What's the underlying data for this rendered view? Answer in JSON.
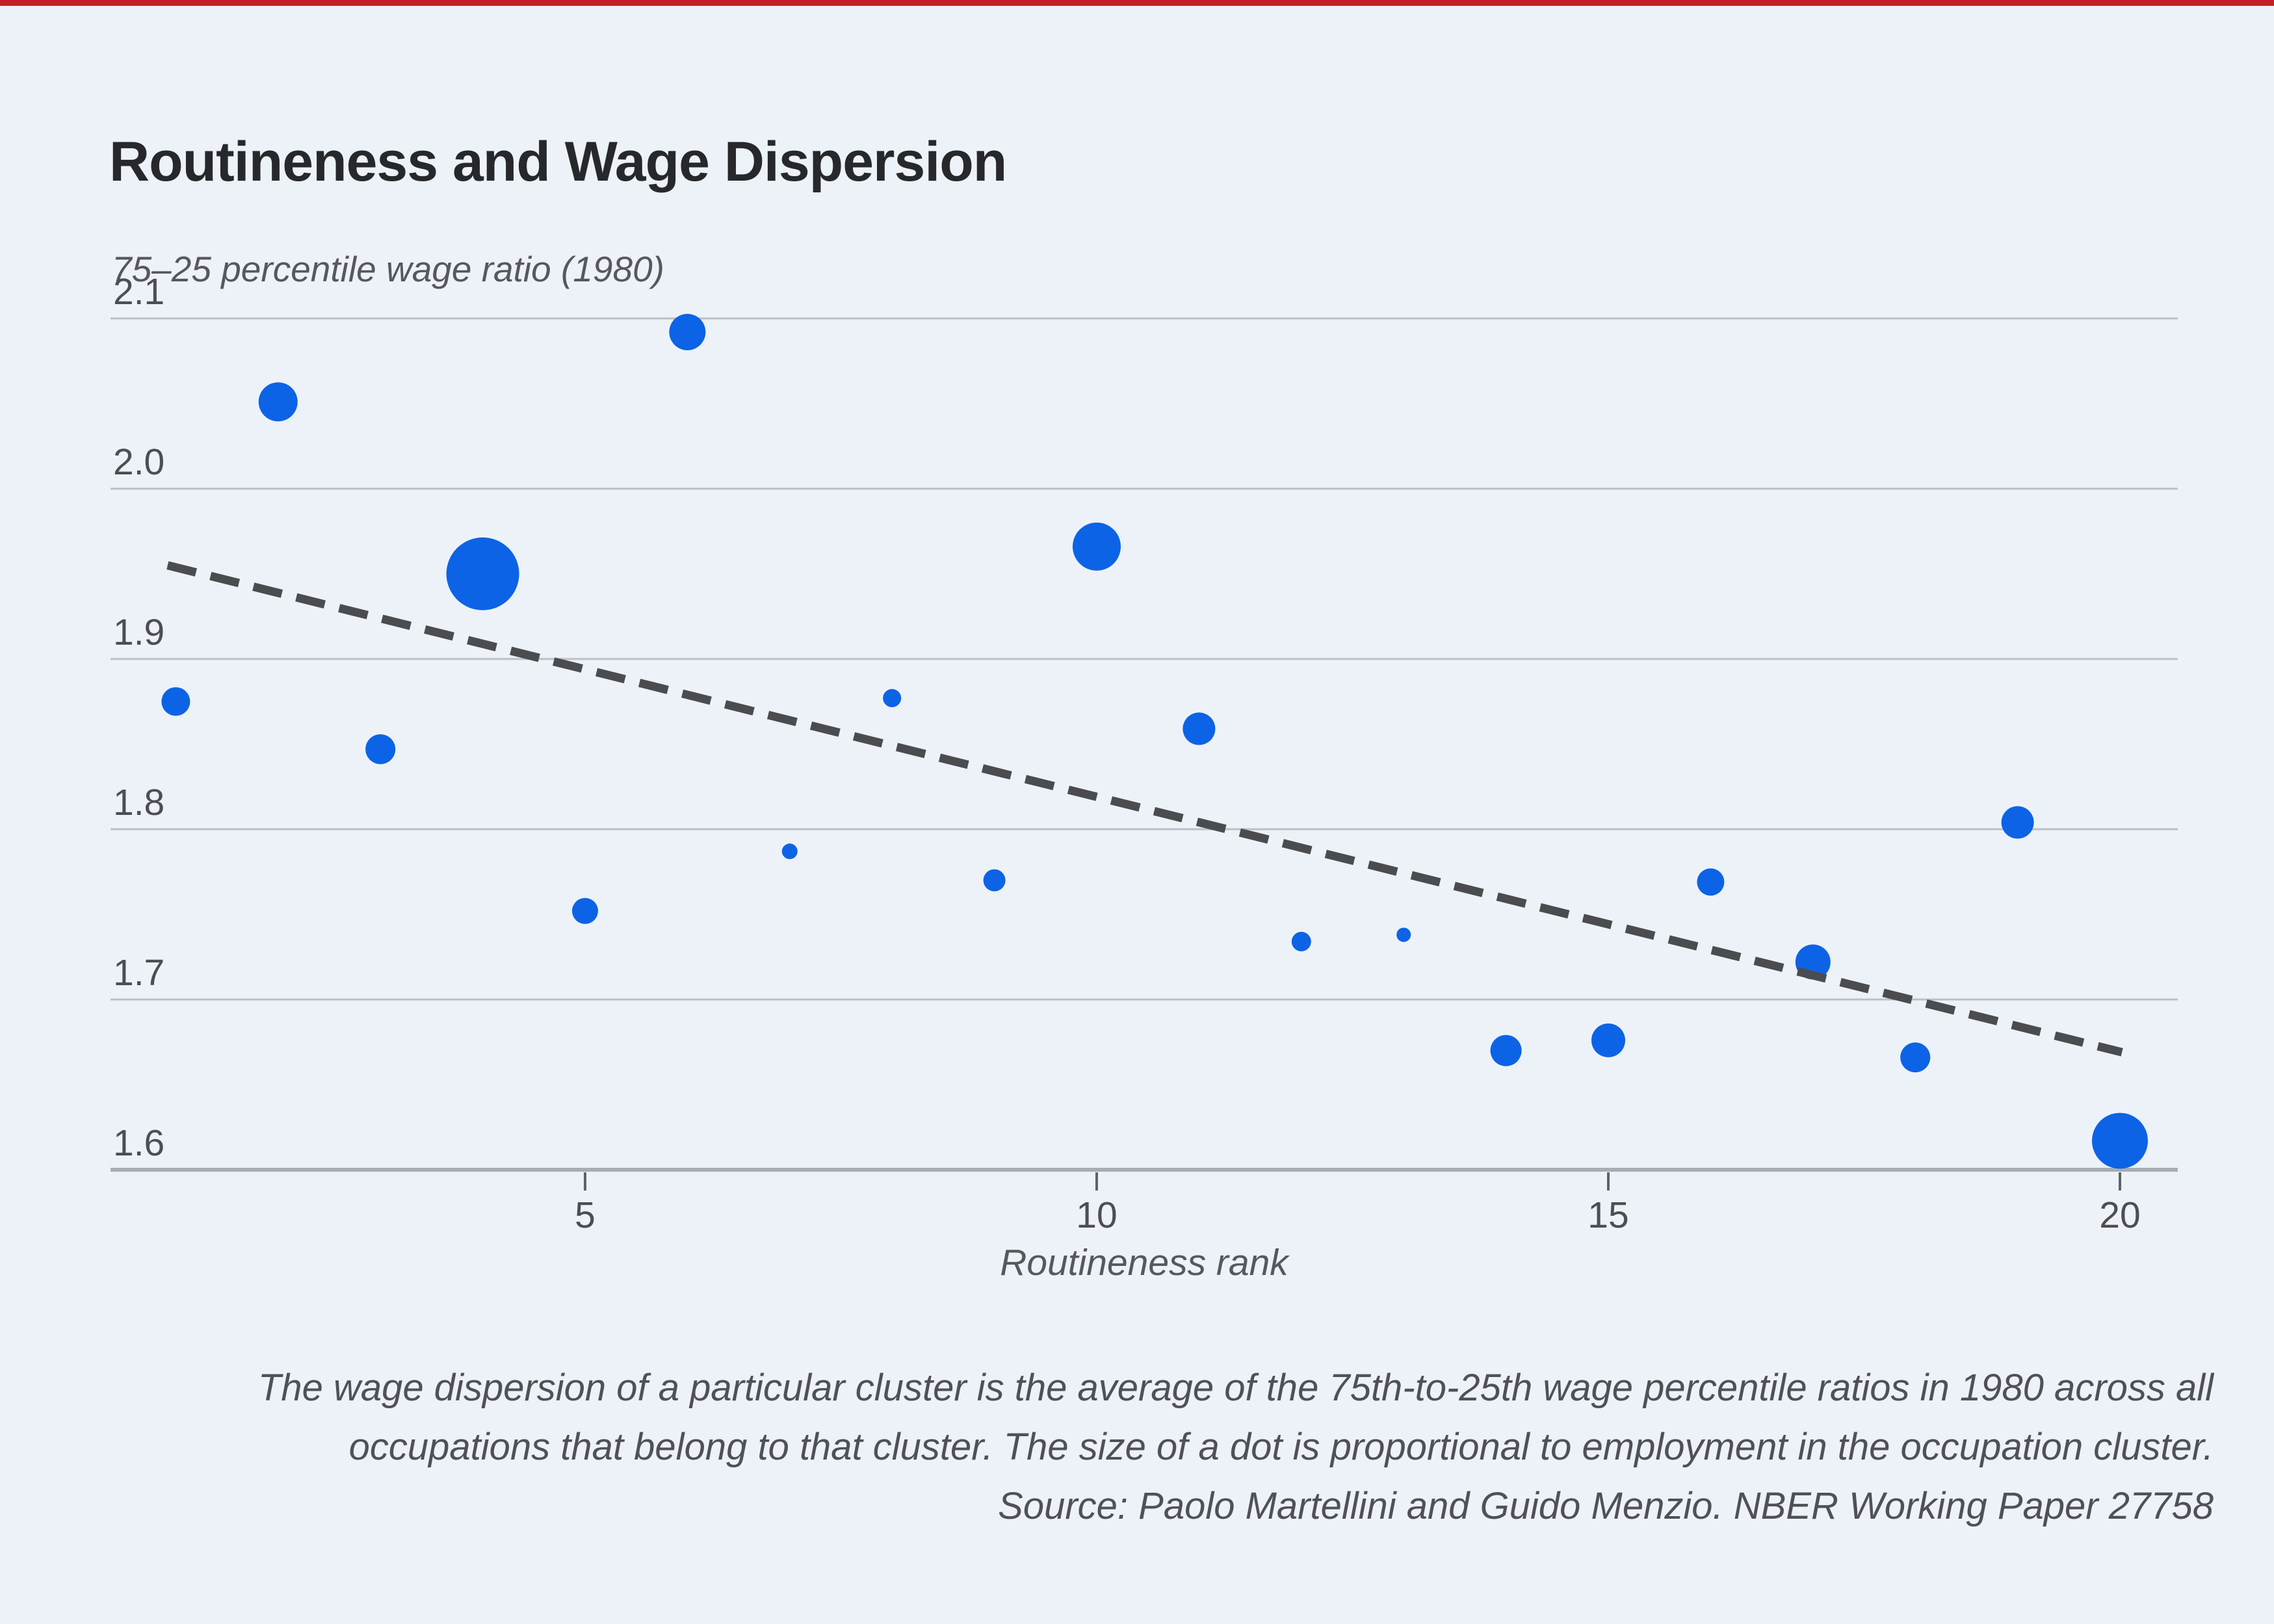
{
  "page": {
    "top_bar_color": "#C22026",
    "background_color": "#EDF2F9"
  },
  "chart_data": {
    "type": "scatter",
    "title": "Routineness and Wage Dispersion",
    "y_axis_note": "75–25 percentile wage ratio (1980)",
    "xlabel": "Routineness rank",
    "ylabel": "",
    "x_ticks": [
      5,
      10,
      15,
      20
    ],
    "y_ticks": [
      2.1,
      2.0,
      1.9,
      1.8,
      1.7,
      1.6
    ],
    "xlim": [
      0.3,
      20.6
    ],
    "ylim": [
      1.57,
      2.13
    ],
    "grid": "horizontal-only",
    "legend": "none",
    "size_encoding": "dot size proportional to employment in occupation cluster",
    "points": [
      {
        "x": 1,
        "y": 1.875,
        "r": 22
      },
      {
        "x": 2,
        "y": 2.051,
        "r": 30
      },
      {
        "x": 3,
        "y": 1.847,
        "r": 23
      },
      {
        "x": 4,
        "y": 1.95,
        "r": 56
      },
      {
        "x": 5,
        "y": 1.752,
        "r": 20
      },
      {
        "x": 6,
        "y": 2.092,
        "r": 28
      },
      {
        "x": 7,
        "y": 1.787,
        "r": 12
      },
      {
        "x": 8,
        "y": 1.877,
        "r": 14
      },
      {
        "x": 9,
        "y": 1.77,
        "r": 17
      },
      {
        "x": 10,
        "y": 1.966,
        "r": 37
      },
      {
        "x": 11,
        "y": 1.859,
        "r": 25
      },
      {
        "x": 12,
        "y": 1.734,
        "r": 15
      },
      {
        "x": 13,
        "y": 1.738,
        "r": 11
      },
      {
        "x": 14,
        "y": 1.67,
        "r": 24
      },
      {
        "x": 15,
        "y": 1.676,
        "r": 26
      },
      {
        "x": 16,
        "y": 1.769,
        "r": 21
      },
      {
        "x": 17,
        "y": 1.722,
        "r": 27
      },
      {
        "x": 18,
        "y": 1.666,
        "r": 23
      },
      {
        "x": 19,
        "y": 1.804,
        "r": 25
      },
      {
        "x": 20,
        "y": 1.617,
        "r": 43
      }
    ],
    "trend": {
      "style": "dashed",
      "x1": 0.92,
      "y1": 1.955,
      "x2": 20.02,
      "y2": 1.669
    },
    "colors": {
      "dot": "#0D63E6",
      "trend": "#4A4C4F",
      "grid": "#BCC0C6",
      "axis": "#A8ACB3",
      "tick_mark": "#5F6368"
    }
  },
  "caption": {
    "lines": [
      "The wage dispersion of a particular cluster is the average of the 75th-to-25th wage percentile ratios in 1980 across all",
      "occupations that belong to that cluster. The size of a dot is proportional to employment in the occupation cluster.",
      "Source: Paolo Martellini and Guido Menzio. NBER Working Paper 27758"
    ]
  }
}
